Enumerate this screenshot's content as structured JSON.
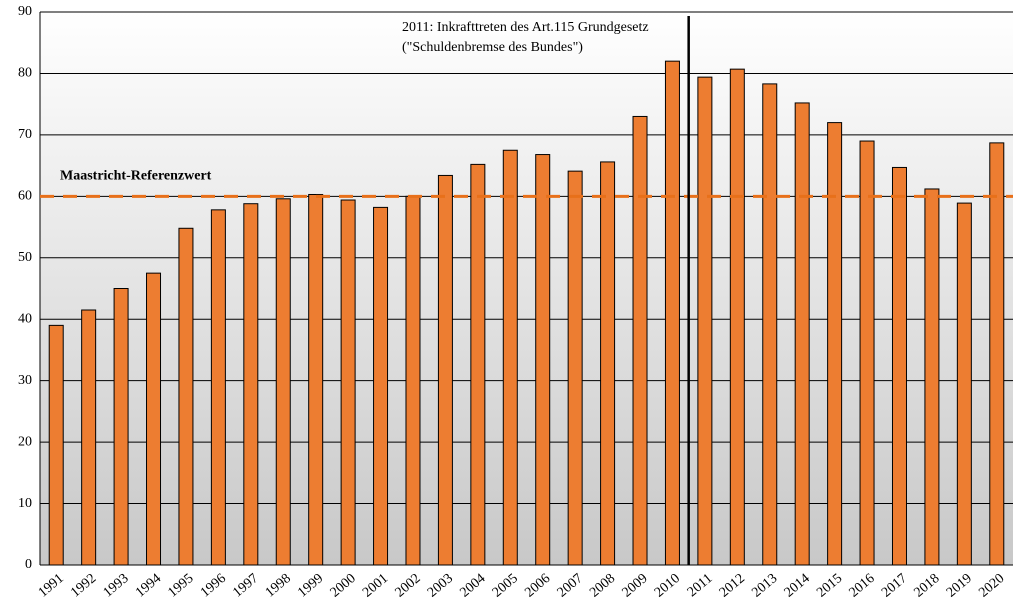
{
  "chart_data": {
    "type": "bar",
    "categories": [
      "1991",
      "1992",
      "1993",
      "1994",
      "1995",
      "1996",
      "1997",
      "1998",
      "1999",
      "2000",
      "2001",
      "2002",
      "2003",
      "2004",
      "2005",
      "2006",
      "2007",
      "2008",
      "2009",
      "2010",
      "2011",
      "2012",
      "2013",
      "2014",
      "2015",
      "2016",
      "2017",
      "2018",
      "2019",
      "2020"
    ],
    "values": [
      39.0,
      41.5,
      45.0,
      47.5,
      54.8,
      57.8,
      58.8,
      59.6,
      60.3,
      59.4,
      58.2,
      60.0,
      63.4,
      65.2,
      67.5,
      66.8,
      64.1,
      65.6,
      73.0,
      82.0,
      79.4,
      80.7,
      78.3,
      75.2,
      72.0,
      69.0,
      64.7,
      61.2,
      58.9,
      68.7
    ],
    "color": "#ed7d31",
    "ylim": [
      0,
      90
    ],
    "yticks": [
      0,
      10,
      20,
      30,
      40,
      50,
      60,
      70,
      80,
      90
    ],
    "grid": true,
    "reference_line": {
      "value": 60,
      "label": "Maastricht-Referenzwert",
      "color": "#e8701a"
    },
    "annotation": [
      "2011: Inkrafttreten des Art.115 Grundgesetz",
      "(\"Schuldenbremse des Bundes\")"
    ]
  }
}
